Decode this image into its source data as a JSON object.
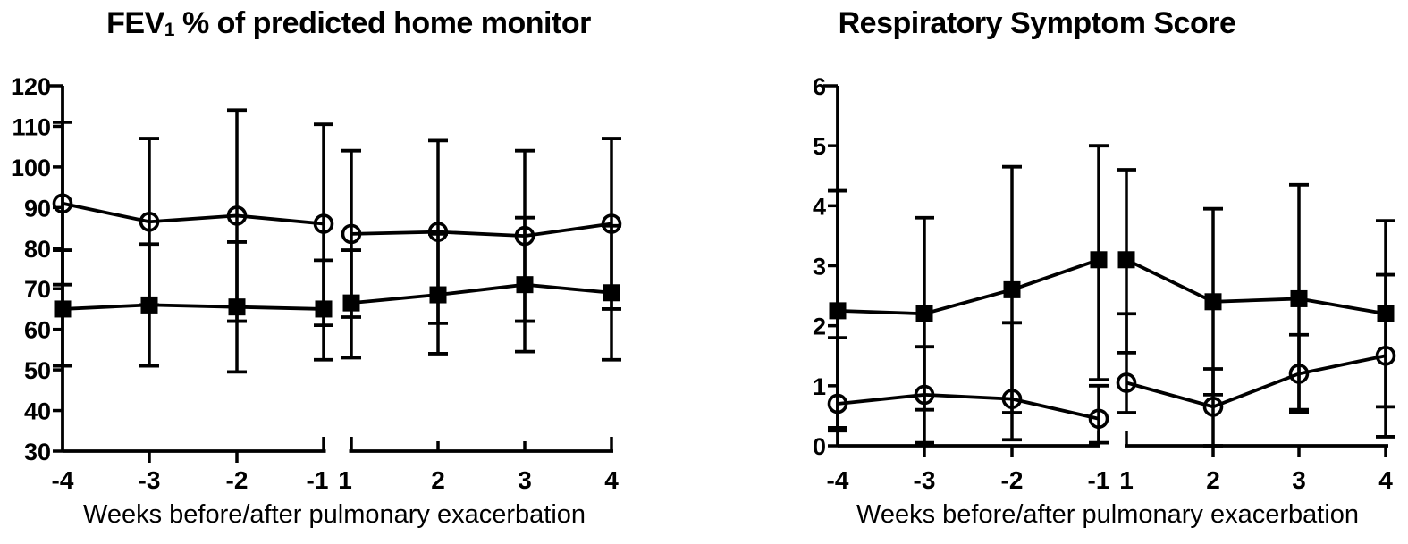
{
  "figure": {
    "background": "#ffffff",
    "ink_color": "#000000",
    "description": "Two-panel line figure with SD error bars and an x-axis break between week -1 and week 1",
    "panel_titles": [
      "FEV1 % of predicted home monitor",
      "Respiratory Symptom Score"
    ]
  },
  "chart_data": [
    {
      "type": "line",
      "title": "FEV1 % of predicted home monitor",
      "title_parts": {
        "prefix": "FEV",
        "subscript": "1",
        "suffix": " % of predicted home monitor"
      },
      "xlabel": "Weeks before/after pulmonary exacerbation",
      "ylabel": "",
      "x_values": [
        -4,
        -3,
        -2,
        -1,
        1,
        2,
        3,
        4
      ],
      "x_tick_labels": [
        "-4",
        "-3",
        "-2",
        "-1",
        "1",
        "2",
        "3",
        "4"
      ],
      "ylim": [
        30,
        120
      ],
      "yticks": [
        30,
        40,
        50,
        60,
        70,
        80,
        90,
        100,
        110,
        120
      ],
      "axis_break": "between week -1 and week 1",
      "grid": false,
      "legend_position": "none",
      "series": [
        {
          "name": "open-circle group",
          "marker": "open-circle",
          "values": [
            91,
            86.5,
            88,
            86,
            83.5,
            84,
            83,
            86
          ],
          "err_high": [
            111,
            107,
            114,
            110.5,
            104,
            106.5,
            104,
            107
          ],
          "err_low": [
            71,
            66,
            62,
            61,
            63,
            61.5,
            62,
            65
          ]
        },
        {
          "name": "filled-square group",
          "marker": "filled-square",
          "values": [
            65,
            66,
            65.5,
            65,
            66.5,
            68.5,
            71,
            69
          ],
          "err_high": [
            79.5,
            81,
            81.5,
            77,
            79.5,
            83.5,
            87.5,
            85.5
          ],
          "err_low": [
            51,
            51,
            49.5,
            52.5,
            53,
            54,
            54.5,
            52.5
          ]
        }
      ]
    },
    {
      "type": "line",
      "title": "Respiratory Symptom Score",
      "title_parts": {
        "prefix": "Respiratory Symptom Score",
        "subscript": "",
        "suffix": ""
      },
      "xlabel": "Weeks before/after pulmonary exacerbation",
      "ylabel": "",
      "x_values": [
        -4,
        -3,
        -2,
        -1,
        1,
        2,
        3,
        4
      ],
      "x_tick_labels": [
        "-4",
        "-3",
        "-2",
        "-1",
        "1",
        "2",
        "3",
        "4"
      ],
      "ylim": [
        0,
        6
      ],
      "yticks": [
        0,
        1,
        2,
        3,
        4,
        5,
        6
      ],
      "axis_break": "between week -1 and week 1",
      "grid": false,
      "legend_position": "none",
      "series": [
        {
          "name": "filled-square group",
          "marker": "filled-square",
          "values": [
            2.25,
            2.2,
            2.6,
            3.1,
            3.1,
            2.4,
            2.45,
            2.2
          ],
          "err_high": [
            4.25,
            3.8,
            4.65,
            5.0,
            4.6,
            3.95,
            4.35,
            3.75
          ],
          "err_low": [
            0.25,
            0.6,
            0.55,
            1.1,
            1.55,
            0.85,
            0.55,
            0.65
          ]
        },
        {
          "name": "open-circle group",
          "marker": "open-circle",
          "values": [
            0.7,
            0.85,
            0.78,
            0.45,
            1.05,
            0.65,
            1.2,
            1.5
          ],
          "err_high": [
            1.8,
            1.65,
            2.05,
            1.0,
            2.2,
            1.28,
            1.85,
            2.85
          ],
          "err_low": [
            0.3,
            0.05,
            0.1,
            0.05,
            0.55,
            0.0,
            0.6,
            0.15
          ]
        }
      ]
    }
  ]
}
